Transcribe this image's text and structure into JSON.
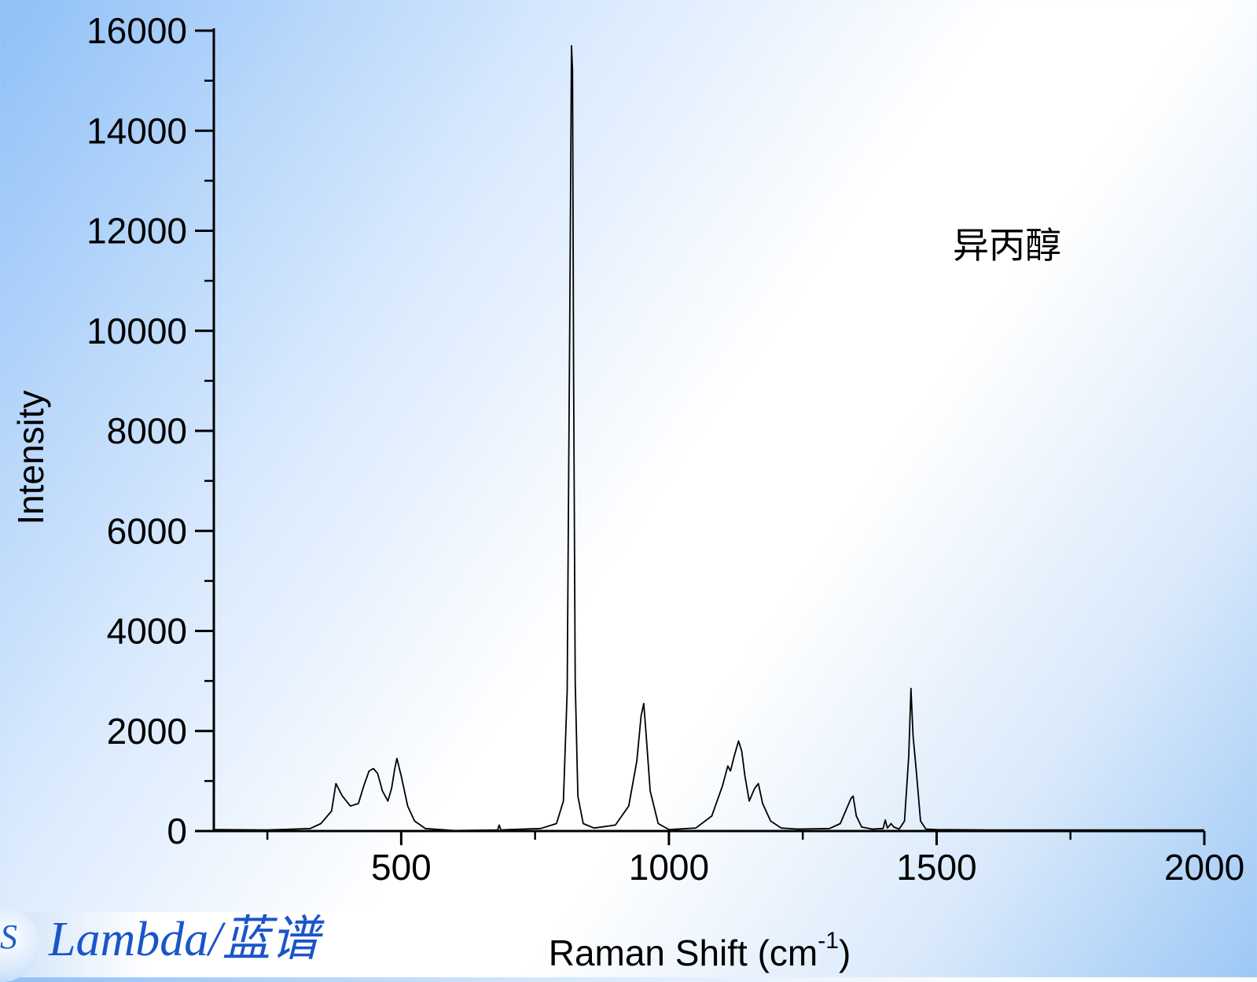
{
  "chart_data": {
    "type": "line",
    "title": "",
    "annotation": "异丙醇",
    "xlabel": "Raman Shift (cm",
    "xlabel_sup": "-1",
    "xlabel_end": ")",
    "ylabel": "Intensity",
    "xlim": [
      150,
      2000
    ],
    "ylim": [
      0,
      16000
    ],
    "x_ticks": [
      500,
      1000,
      1500,
      2000
    ],
    "x_minor_ticks": [
      250,
      750,
      1250,
      1750
    ],
    "y_ticks": [
      0,
      2000,
      4000,
      6000,
      8000,
      10000,
      12000,
      14000,
      16000
    ],
    "grid": false,
    "series": [
      {
        "x": [
          150,
          250,
          330,
          350,
          370,
          378,
          390,
          405,
          420,
          430,
          440,
          448,
          456,
          465,
          475,
          482,
          488,
          492,
          500,
          512,
          525,
          545,
          600,
          680,
          683,
          686,
          700,
          760,
          790,
          803,
          810,
          815,
          818,
          820,
          822,
          825,
          830,
          840,
          860,
          900,
          925,
          940,
          948,
          953,
          957,
          965,
          980,
          1000,
          1050,
          1080,
          1100,
          1110,
          1115,
          1122,
          1130,
          1136,
          1142,
          1150,
          1160,
          1167,
          1175,
          1190,
          1210,
          1240,
          1300,
          1320,
          1330,
          1340,
          1344,
          1350,
          1360,
          1380,
          1400,
          1404,
          1408,
          1415,
          1420,
          1430,
          1440,
          1448,
          1452,
          1456,
          1462,
          1470,
          1480,
          1500,
          1600,
          1700,
          1800,
          1900,
          2000
        ],
        "y": [
          30,
          20,
          50,
          150,
          400,
          950,
          700,
          500,
          550,
          900,
          1200,
          1250,
          1150,
          800,
          600,
          850,
          1250,
          1450,
          1100,
          500,
          200,
          50,
          10,
          20,
          120,
          20,
          30,
          50,
          150,
          600,
          2800,
          10500,
          15700,
          15200,
          9000,
          3000,
          700,
          150,
          60,
          120,
          500,
          1400,
          2300,
          2550,
          2000,
          800,
          150,
          30,
          60,
          300,
          900,
          1300,
          1200,
          1500,
          1800,
          1600,
          1100,
          600,
          850,
          950,
          550,
          200,
          60,
          40,
          50,
          150,
          400,
          650,
          700,
          300,
          80,
          40,
          50,
          220,
          60,
          150,
          80,
          40,
          200,
          1500,
          2850,
          1900,
          1200,
          200,
          40,
          30,
          20,
          20,
          20,
          20,
          20
        ]
      }
    ]
  },
  "logo": {
    "glyph": "S",
    "text": "Lambda/蓝谱"
  }
}
